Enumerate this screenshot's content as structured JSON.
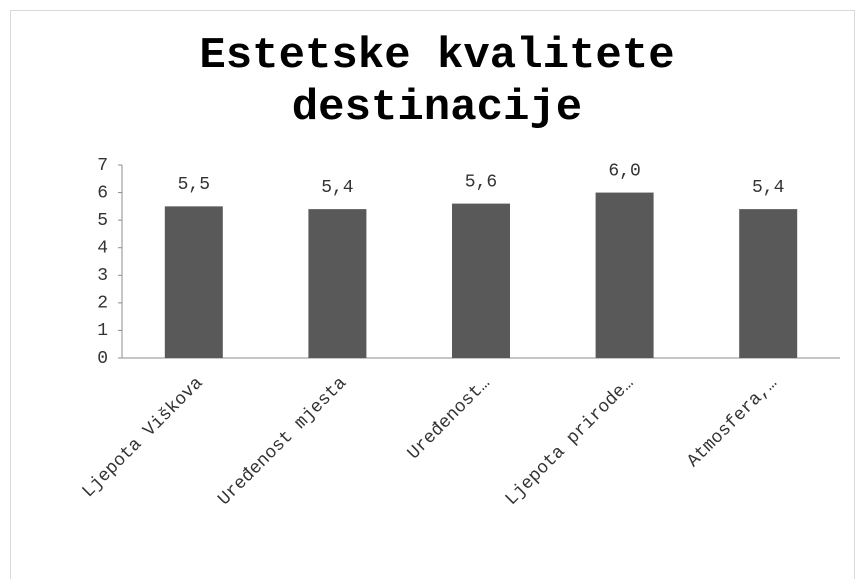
{
  "chart_data": {
    "type": "bar",
    "title": "Estetske kvalitete destinacije",
    "categories": [
      "Ljepota Viškova",
      "Uređenost mjesta",
      "Uređenost…",
      "Ljepota prirode…",
      "Atmosfera,…"
    ],
    "values": [
      5.5,
      5.4,
      5.6,
      6.0,
      5.4
    ],
    "value_labels": [
      "5,5",
      "5,4",
      "5,6",
      "6,0",
      "5,4"
    ],
    "color": "#595959",
    "ylim": [
      0,
      7
    ],
    "yticks": [
      0,
      1,
      2,
      3,
      4,
      5,
      6,
      7
    ],
    "grid": false
  }
}
